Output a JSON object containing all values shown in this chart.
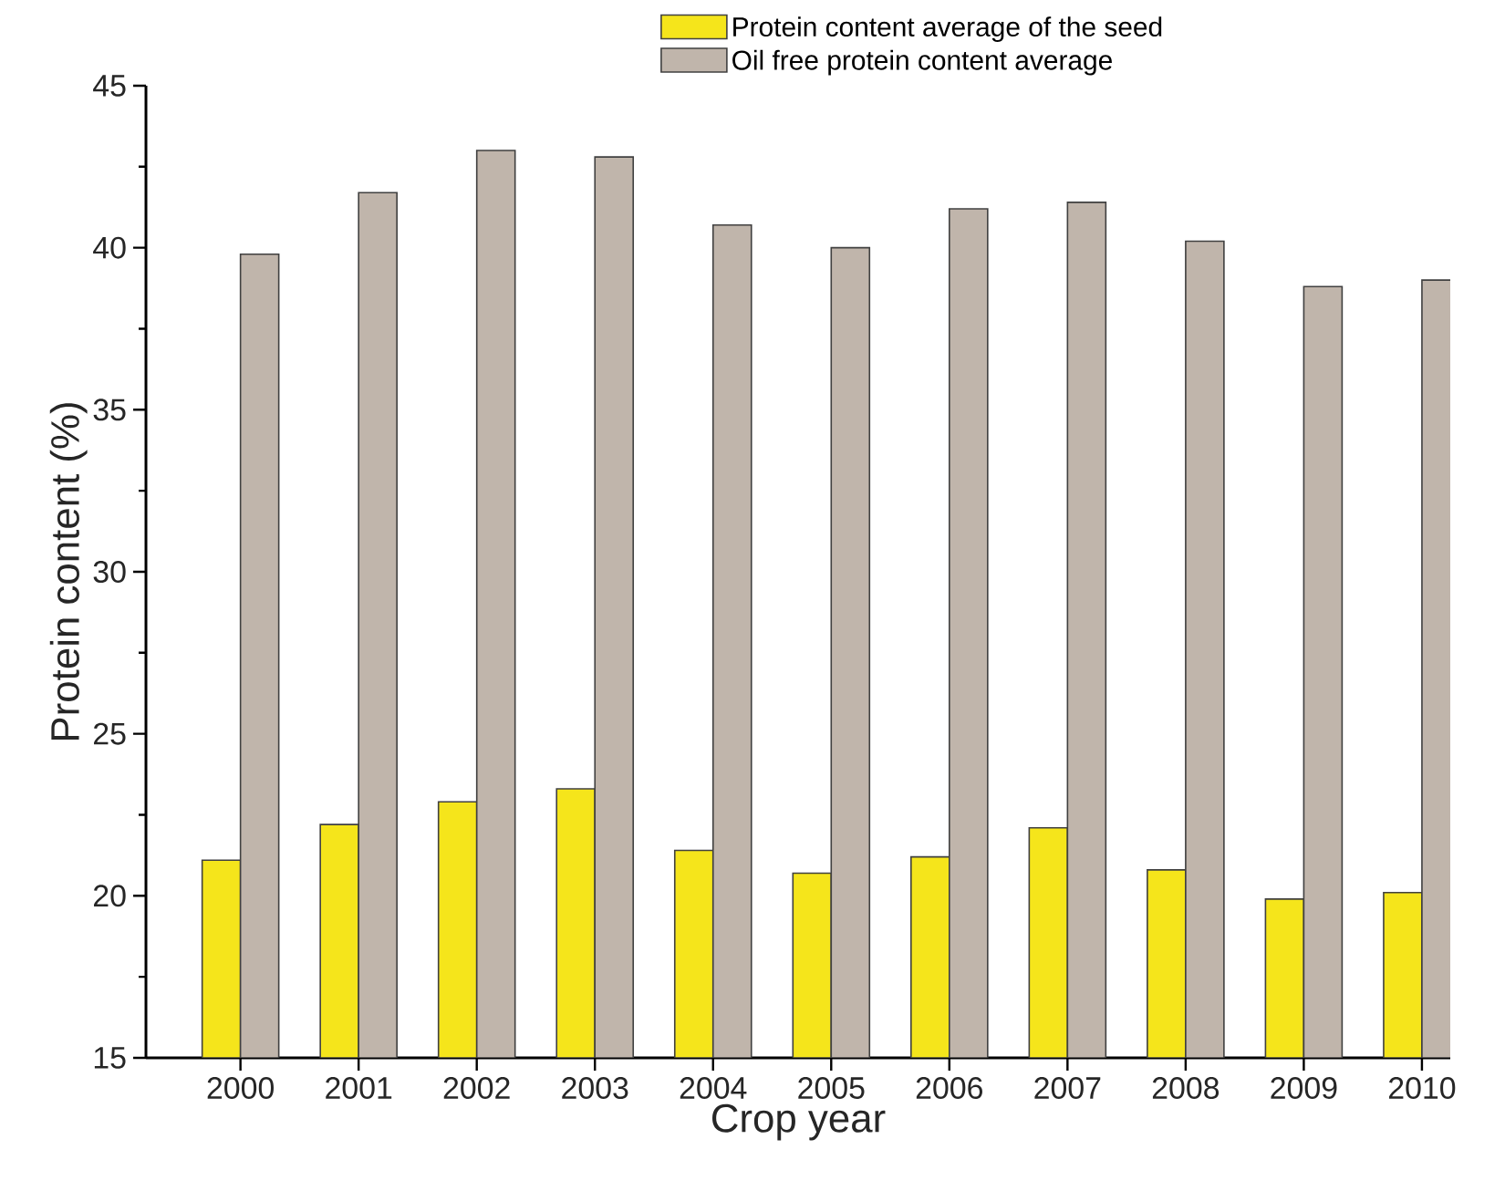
{
  "chart_data": {
    "type": "bar",
    "xlabel": "Crop year",
    "ylabel": "Protein content (%)",
    "categories": [
      "2000",
      "2001",
      "2002",
      "2003",
      "2004",
      "2005",
      "2006",
      "2007",
      "2008",
      "2009",
      "2010"
    ],
    "series": [
      {
        "name": "Protein content average of the seed",
        "color": "#f5e51b",
        "values": [
          21.1,
          22.2,
          22.9,
          23.3,
          21.4,
          20.7,
          21.2,
          22.1,
          20.8,
          19.9,
          20.1
        ]
      },
      {
        "name": "Oil free protein content average",
        "color": "#c0b5ab",
        "values": [
          39.8,
          41.7,
          43.0,
          42.8,
          40.7,
          40.0,
          41.2,
          41.4,
          40.2,
          38.8,
          39.0
        ]
      }
    ],
    "ylim": [
      15,
      45
    ],
    "yticks": [
      15,
      20,
      25,
      30,
      35,
      40,
      45
    ],
    "legend": "top right"
  }
}
